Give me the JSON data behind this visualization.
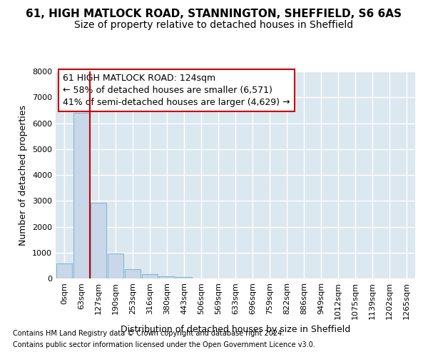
{
  "title1": "61, HIGH MATLOCK ROAD, STANNINGTON, SHEFFIELD, S6 6AS",
  "title2": "Size of property relative to detached houses in Sheffield",
  "xlabel": "Distribution of detached houses by size in Sheffield",
  "ylabel": "Number of detached properties",
  "footer1": "Contains HM Land Registry data © Crown copyright and database right 2024.",
  "footer2": "Contains public sector information licensed under the Open Government Licence v3.0.",
  "annotation_line1": "61 HIGH MATLOCK ROAD: 124sqm",
  "annotation_line2": "← 58% of detached houses are smaller (6,571)",
  "annotation_line3": "41% of semi-detached houses are larger (4,629) →",
  "bar_categories": [
    "0sqm",
    "63sqm",
    "127sqm",
    "190sqm",
    "253sqm",
    "316sqm",
    "380sqm",
    "443sqm",
    "506sqm",
    "569sqm",
    "633sqm",
    "696sqm",
    "759sqm",
    "822sqm",
    "886sqm",
    "949sqm",
    "1012sqm",
    "1075sqm",
    "1139sqm",
    "1202sqm",
    "1265sqm"
  ],
  "bar_values": [
    580,
    6400,
    2920,
    975,
    370,
    160,
    90,
    55,
    0,
    0,
    0,
    0,
    0,
    0,
    0,
    0,
    0,
    0,
    0,
    0,
    0
  ],
  "bar_color": "#c8d8e8",
  "bar_edge_color": "#8ab4d4",
  "marker_line_color": "#cc0000",
  "marker_bin_index": 2,
  "ylim": [
    0,
    8000
  ],
  "yticks": [
    0,
    1000,
    2000,
    3000,
    4000,
    5000,
    6000,
    7000,
    8000
  ],
  "plot_bg_color": "#dce8f0",
  "fig_bg_color": "#ffffff",
  "grid_color": "#ffffff",
  "title1_fontsize": 11,
  "title2_fontsize": 10,
  "xlabel_fontsize": 9,
  "ylabel_fontsize": 9,
  "tick_fontsize": 8,
  "annotation_box_color": "#cc0000",
  "annotation_text_fontsize": 9,
  "footer_fontsize": 7
}
